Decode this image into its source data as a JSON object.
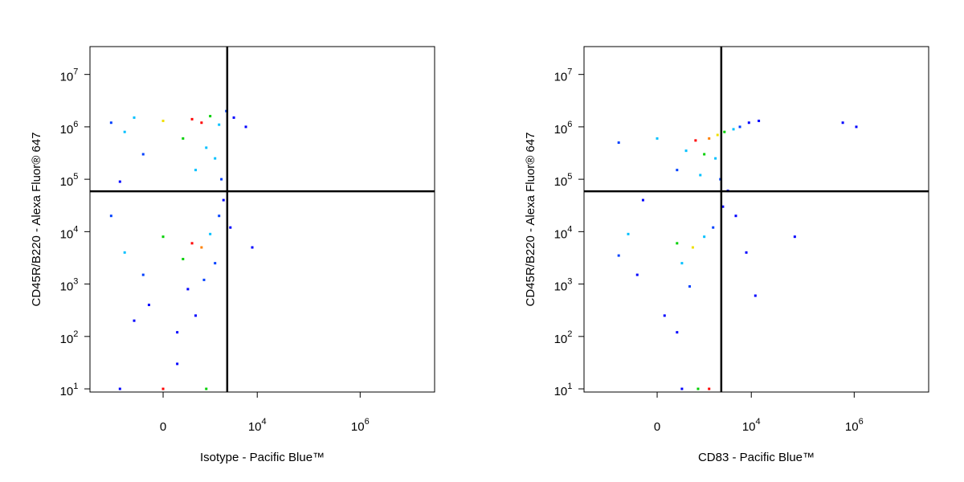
{
  "chart_data": [
    {
      "type": "scatter",
      "xlabel": "Isotype - Pacific Blue™",
      "ylabel": "CD45R/B220 - Alexa Fluor® 647",
      "xscale": "biexponential",
      "yscale": "log",
      "xlim": [
        -3900,
        28000000
      ],
      "ylim": [
        8.7,
        34000000
      ],
      "xticks": [
        0,
        {
          "value": 10000,
          "label": "10",
          "exponent": "4"
        },
        {
          "value": 1000000,
          "label": "10",
          "exponent": "6"
        }
      ],
      "yticks": [
        {
          "value": 10,
          "label": "10",
          "exponent": "1"
        },
        {
          "value": 100,
          "label": "10",
          "exponent": "2"
        },
        {
          "value": 1000,
          "label": "10",
          "exponent": "3"
        },
        {
          "value": 10000,
          "label": "10",
          "exponent": "4"
        },
        {
          "value": 100000,
          "label": "10",
          "exponent": "5"
        },
        {
          "value": 1000000,
          "label": "10",
          "exponent": "6"
        },
        {
          "value": 10000000,
          "label": "10",
          "exponent": "7"
        }
      ],
      "gates": {
        "x": 2600,
        "y": 59000
      },
      "x": [
        -1500,
        -500,
        0,
        500,
        800,
        1200,
        1800,
        2500,
        3500,
        6000,
        -800,
        300,
        1000,
        -300,
        1500,
        600,
        2000,
        -1000,
        0,
        500,
        800,
        1200,
        -800,
        300,
        1500,
        -300,
        400,
        900,
        -200,
        600,
        200,
        -1500,
        1800,
        3000,
        8000,
        200,
        -500,
        2200,
        -1000,
        0,
        1000
      ],
      "y": [
        1200000,
        1500000,
        1300000,
        1400000,
        1200000,
        1600000,
        1100000,
        2000000,
        1500000,
        1000000,
        800000,
        600000,
        400000,
        300000,
        250000,
        150000,
        100000,
        90000,
        8000,
        6000,
        5000,
        9000,
        4000,
        3000,
        2500,
        1500,
        800,
        1200,
        400,
        250,
        120,
        20000,
        20000,
        12000,
        5000,
        30,
        200,
        40000,
        10,
        10,
        10
      ],
      "point_colors": [
        "#0040ff",
        "#00c0ff",
        "#f0e000",
        "#ff0000",
        "#ff0000",
        "#00d000",
        "#00c0ff",
        "#0040ff",
        "#0000ff",
        "#0000ff",
        "#00c0ff",
        "#00d000",
        "#00c0ff",
        "#0040ff",
        "#00c0ff",
        "#00c0ff",
        "#0040ff",
        "#0000ff",
        "#00d000",
        "#ff0000",
        "#ff8000",
        "#00c0ff",
        "#00c0ff",
        "#00d000",
        "#0040ff",
        "#0040ff",
        "#0000ff",
        "#0040ff",
        "#0000ff",
        "#0000ff",
        "#0000ff",
        "#0040ff",
        "#0040ff",
        "#0000ff",
        "#0000ff",
        "#0000ff",
        "#0000ff",
        "#0000ff",
        "#0000ff",
        "#ff0000",
        "#00d000"
      ]
    },
    {
      "type": "scatter",
      "xlabel": "CD83 - Pacific Blue™",
      "ylabel": "CD45R/B220 - Alexa Fluor® 647",
      "xscale": "biexponential",
      "yscale": "log",
      "xlim": [
        -3900,
        28000000
      ],
      "ylim": [
        8.7,
        34000000
      ],
      "xticks": [
        0,
        {
          "value": 10000,
          "label": "10",
          "exponent": "4"
        },
        {
          "value": 1000000,
          "label": "10",
          "exponent": "6"
        }
      ],
      "yticks": [
        {
          "value": 10,
          "label": "10",
          "exponent": "1"
        },
        {
          "value": 100,
          "label": "10",
          "exponent": "2"
        },
        {
          "value": 1000,
          "label": "10",
          "exponent": "3"
        },
        {
          "value": 10000,
          "label": "10",
          "exponent": "4"
        },
        {
          "value": 100000,
          "label": "10",
          "exponent": "5"
        },
        {
          "value": 1000000,
          "label": "10",
          "exponent": "6"
        },
        {
          "value": 10000000,
          "label": "10",
          "exponent": "7"
        }
      ],
      "gates": {
        "x": 2600,
        "y": 59000
      },
      "x": [
        -800,
        0,
        800,
        1500,
        2200,
        3000,
        4500,
        6000,
        9000,
        14000,
        500,
        1200,
        2000,
        300,
        1000,
        2500,
        600000,
        1100000,
        3500,
        -500,
        300,
        700,
        1200,
        -800,
        400,
        1800,
        -300,
        600,
        100,
        300,
        2800,
        5000,
        70000,
        12000,
        8000,
        -200,
        400,
        900,
        1500
      ],
      "y": [
        500000,
        600000,
        550000,
        600000,
        700000,
        800000,
        900000,
        1000000,
        1200000,
        1300000,
        350000,
        300000,
        250000,
        150000,
        120000,
        100000,
        1200000,
        1000000,
        60000,
        9000,
        6000,
        5000,
        8000,
        3500,
        2500,
        12000,
        1500,
        900,
        250,
        120,
        30000,
        20000,
        8000,
        600,
        4000,
        40000,
        10,
        10,
        10
      ],
      "point_colors": [
        "#0040ff",
        "#00c0ff",
        "#ff0000",
        "#ff8000",
        "#f0e000",
        "#00d000",
        "#00c0ff",
        "#0040ff",
        "#0000ff",
        "#0000ff",
        "#00c0ff",
        "#00d000",
        "#00c0ff",
        "#0040ff",
        "#00c0ff",
        "#0040ff",
        "#0000ff",
        "#0000ff",
        "#0000ff",
        "#00c0ff",
        "#00d000",
        "#f0e000",
        "#00c0ff",
        "#0040ff",
        "#00c0ff",
        "#0040ff",
        "#0000ff",
        "#0040ff",
        "#0000ff",
        "#0000ff",
        "#0000ff",
        "#0000ff",
        "#0000ff",
        "#0000ff",
        "#0000ff",
        "#0000ff",
        "#0000ff",
        "#00d000",
        "#ff0000"
      ]
    }
  ]
}
